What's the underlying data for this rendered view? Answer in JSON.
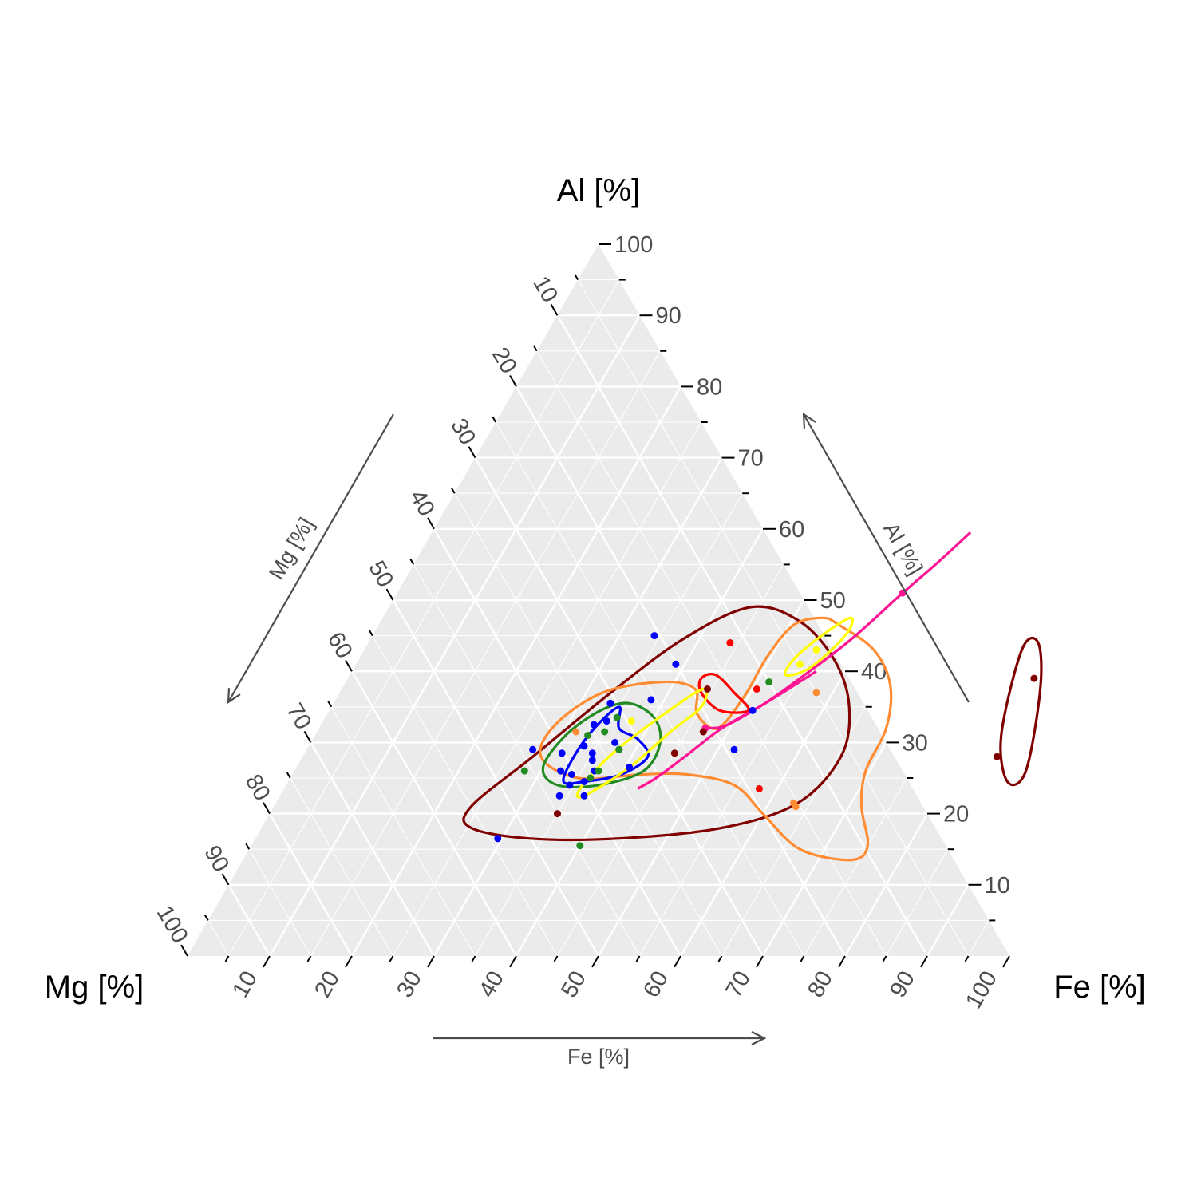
{
  "chart_data": {
    "type": "scatter",
    "subtype": "ternary",
    "corner_labels": {
      "top": "Al [%]",
      "left": "Mg [%]",
      "right": "Fe [%]"
    },
    "axis_arrow_labels": {
      "bottom": "Fe [%]",
      "left": "Mg [%]",
      "right": "Al [%]"
    },
    "tick_labels": {
      "al": [
        "10",
        "20",
        "30",
        "40",
        "50",
        "60",
        "70",
        "80",
        "90",
        "100"
      ],
      "mg": [
        "10",
        "20",
        "30",
        "40",
        "50",
        "60",
        "70",
        "80",
        "90",
        "100"
      ],
      "fe": [
        "10",
        "20",
        "30",
        "40",
        "50",
        "60",
        "70",
        "80",
        "90",
        "100"
      ]
    },
    "grid": true,
    "colors": {
      "panel": "#ebebeb",
      "grid": "#ffffff",
      "axis_text": "#4d4d4d",
      "title_text": "#000000",
      "arrow": "#4d4d4d"
    },
    "series": [
      {
        "color": "#0000ff",
        "points": [
          {
            "fe": 34.3,
            "al": 45.0
          },
          {
            "fe": 38.9,
            "al": 41.0
          },
          {
            "fe": 33.7,
            "al": 35.5
          },
          {
            "fe": 38.4,
            "al": 36.0
          },
          {
            "fe": 33.2,
            "al": 32.5
          },
          {
            "fe": 34.5,
            "al": 33.0
          },
          {
            "fe": 33.5,
            "al": 29.5
          },
          {
            "fe": 31.3,
            "al": 28.5
          },
          {
            "fe": 35.0,
            "al": 28.5
          },
          {
            "fe": 35.5,
            "al": 27.5
          },
          {
            "fe": 37.0,
            "al": 30.0
          },
          {
            "fe": 38.0,
            "al": 29.0
          },
          {
            "fe": 36.5,
            "al": 26.0
          },
          {
            "fe": 34.0,
            "al": 25.5
          },
          {
            "fe": 32.4,
            "al": 26.0
          },
          {
            "fe": 27.5,
            "al": 29.0
          },
          {
            "fe": 34.5,
            "al": 24.0
          },
          {
            "fe": 36.0,
            "al": 24.5
          },
          {
            "fe": 40.5,
            "al": 26.5
          },
          {
            "fe": 34.0,
            "al": 22.5
          },
          {
            "fe": 37.0,
            "al": 22.5
          },
          {
            "fe": 51.5,
            "al": 34.5
          },
          {
            "fe": 52.0,
            "al": 29.0
          },
          {
            "fe": 29.5,
            "al": 16.5
          }
        ]
      },
      {
        "color": "#228b22",
        "points": [
          {
            "fe": 35.5,
            "al": 33.5
          },
          {
            "fe": 35.0,
            "al": 31.5
          },
          {
            "fe": 33.2,
            "al": 31.0
          },
          {
            "fe": 38.0,
            "al": 29.0
          },
          {
            "fe": 37.0,
            "al": 26.0
          },
          {
            "fe": 28.0,
            "al": 26.0
          },
          {
            "fe": 51.5,
            "al": 38.5
          },
          {
            "fe": 36.5,
            "al": 25.0
          },
          {
            "fe": 40.0,
            "al": 15.5
          }
        ]
      },
      {
        "color": "#ff0000",
        "points": [
          {
            "fe": 44.0,
            "al": 44.0
          },
          {
            "fe": 50.5,
            "al": 37.5
          },
          {
            "fe": 57.8,
            "al": 23.5
          }
        ]
      },
      {
        "color": "#ffff00",
        "points": [
          {
            "fe": 37.5,
            "al": 33.0
          },
          {
            "fe": 55.0,
            "al": 43.0
          },
          {
            "fe": 54.0,
            "al": 41.0
          }
        ]
      },
      {
        "color": "#ff8c33",
        "points": [
          {
            "fe": 58.0,
            "al": 37.0
          },
          {
            "fe": 31.5,
            "al": 31.5
          },
          {
            "fe": 63.5,
            "al": 21.0
          },
          {
            "fe": 63.0,
            "al": 21.5
          }
        ]
      },
      {
        "color": "#ff1493",
        "points": [
          {
            "fe": 61.5,
            "al": 51.0
          },
          {
            "fe": 47.0,
            "al": 32.0
          }
        ]
      },
      {
        "color": "#800000",
        "points": [
          {
            "fe": 44.5,
            "al": 37.5
          },
          {
            "fe": 45.0,
            "al": 28.5
          },
          {
            "fe": 47.0,
            "al": 31.5
          },
          {
            "fe": 35.0,
            "al": 20.0
          },
          {
            "fe": 83.5,
            "al": 39.0
          },
          {
            "fe": 84.5,
            "al": 28.0
          }
        ]
      }
    ],
    "density_contours": [
      {
        "color": "#800000",
        "points": [
          {
            "fe": 44.0,
            "al": 49.0
          },
          {
            "fe": 51.0,
            "al": 47.0
          },
          {
            "fe": 58.0,
            "al": 41.5
          },
          {
            "fe": 63.0,
            "al": 35.0
          },
          {
            "fe": 65.5,
            "al": 28.0
          },
          {
            "fe": 63.5,
            "al": 21.5
          },
          {
            "fe": 56.0,
            "al": 18.0
          },
          {
            "fe": 44.0,
            "al": 16.5
          },
          {
            "fe": 33.5,
            "al": 16.5
          },
          {
            "fe": 25.5,
            "al": 18.0
          },
          {
            "fe": 24.0,
            "al": 21.0
          },
          {
            "fe": 28.0,
            "al": 28.0
          },
          {
            "fe": 33.0,
            "al": 37.0
          },
          {
            "fe": 38.0,
            "al": 44.5
          }
        ]
      },
      {
        "color": "#800000",
        "points": [
          {
            "fe": 80.0,
            "al": 43.0
          },
          {
            "fe": 81.5,
            "al": 44.0
          },
          {
            "fe": 85.0,
            "al": 37.5
          },
          {
            "fe": 89.0,
            "al": 26.0
          },
          {
            "fe": 87.5,
            "al": 24.5
          },
          {
            "fe": 83.5,
            "al": 31.0
          }
        ]
      },
      {
        "color": "#ff8c33",
        "points": [
          {
            "fe": 56.0,
            "al": 46.5
          },
          {
            "fe": 62.0,
            "al": 43.0
          },
          {
            "fe": 66.5,
            "al": 38.0
          },
          {
            "fe": 69.0,
            "al": 32.0
          },
          {
            "fe": 69.5,
            "al": 26.0
          },
          {
            "fe": 71.5,
            "al": 21.0
          },
          {
            "fe": 75.0,
            "al": 15.5
          },
          {
            "fe": 74.0,
            "al": 13.5
          },
          {
            "fe": 67.0,
            "al": 15.0
          },
          {
            "fe": 60.0,
            "al": 20.0
          },
          {
            "fe": 54.5,
            "al": 24.0
          },
          {
            "fe": 48.0,
            "al": 25.5
          },
          {
            "fe": 42.5,
            "al": 25.5
          },
          {
            "fe": 35.0,
            "al": 25.0
          },
          {
            "fe": 29.0,
            "al": 28.0
          },
          {
            "fe": 28.5,
            "al": 32.5
          },
          {
            "fe": 32.0,
            "al": 37.0
          },
          {
            "fe": 38.5,
            "al": 38.5
          },
          {
            "fe": 43.0,
            "al": 37.5
          },
          {
            "fe": 45.0,
            "al": 34.0
          },
          {
            "fe": 48.5,
            "al": 32.0
          },
          {
            "fe": 49.5,
            "al": 36.5
          },
          {
            "fe": 49.5,
            "al": 42.0
          },
          {
            "fe": 50.5,
            "al": 46.5
          },
          {
            "fe": 53.5,
            "al": 47.5
          }
        ]
      },
      {
        "color": "#ff0000",
        "points": [
          {
            "fe": 44.5,
            "al": 39.5
          },
          {
            "fe": 48.0,
            "al": 37.0
          },
          {
            "fe": 51.0,
            "al": 34.5
          },
          {
            "fe": 47.5,
            "al": 34.5
          },
          {
            "fe": 44.0,
            "al": 37.0
          },
          {
            "fe": 43.0,
            "al": 39.0
          }
        ]
      },
      {
        "color": "#228b22",
        "points": [
          {
            "fe": 36.0,
            "al": 35.5
          },
          {
            "fe": 40.0,
            "al": 33.5
          },
          {
            "fe": 42.5,
            "al": 30.0
          },
          {
            "fe": 42.5,
            "al": 26.0
          },
          {
            "fe": 38.0,
            "al": 24.0
          },
          {
            "fe": 33.0,
            "al": 24.0
          },
          {
            "fe": 30.0,
            "al": 26.5
          },
          {
            "fe": 30.5,
            "al": 31.0
          },
          {
            "fe": 33.0,
            "al": 34.5
          }
        ]
      },
      {
        "color": "#0000ff",
        "points": [
          {
            "fe": 35.0,
            "al": 35.0
          },
          {
            "fe": 36.5,
            "al": 32.0
          },
          {
            "fe": 39.5,
            "al": 30.5
          },
          {
            "fe": 42.0,
            "al": 28.0
          },
          {
            "fe": 40.0,
            "al": 25.5
          },
          {
            "fe": 36.0,
            "al": 24.5
          },
          {
            "fe": 33.5,
            "al": 24.5
          },
          {
            "fe": 33.0,
            "al": 28.0
          },
          {
            "fe": 33.5,
            "al": 32.0
          }
        ]
      },
      {
        "color": "#ffff00",
        "points": [
          {
            "fe": 44.0,
            "al": 37.5
          },
          {
            "fe": 45.0,
            "al": 35.0
          },
          {
            "fe": 43.0,
            "al": 31.5
          },
          {
            "fe": 40.5,
            "al": 26.5
          },
          {
            "fe": 37.0,
            "al": 22.5
          },
          {
            "fe": 36.0,
            "al": 23.5
          },
          {
            "fe": 37.5,
            "al": 28.5
          },
          {
            "fe": 41.0,
            "al": 34.0
          }
        ]
      },
      {
        "color": "#ffff00",
        "points": [
          {
            "fe": 57.0,
            "al": 47.5
          },
          {
            "fe": 57.5,
            "al": 45.0
          },
          {
            "fe": 55.5,
            "al": 40.5
          },
          {
            "fe": 53.0,
            "al": 39.5
          },
          {
            "fe": 53.0,
            "al": 42.0
          },
          {
            "fe": 55.0,
            "al": 45.5
          }
        ]
      }
    ],
    "open_curves": [
      {
        "color": "#ff1493",
        "points": [
          {
            "fe": 65.5,
            "al": 59.5
          },
          {
            "fe": 63.5,
            "al": 55.0
          },
          {
            "fe": 61.5,
            "al": 51.0
          },
          {
            "fe": 58.5,
            "al": 44.5
          },
          {
            "fe": 55.0,
            "al": 39.0
          },
          {
            "fe": 52.5,
            "al": 35.5
          },
          {
            "fe": 49.0,
            "al": 32.0
          },
          {
            "fe": 46.5,
            "al": 28.0
          },
          {
            "fe": 44.5,
            "al": 25.0
          },
          {
            "fe": 43.0,
            "al": 23.5
          }
        ]
      },
      {
        "color": "#ff1493",
        "points": [
          {
            "fe": 56.5,
            "al": 40.0
          },
          {
            "fe": 53.0,
            "al": 36.0
          },
          {
            "fe": 49.5,
            "al": 32.5
          },
          {
            "fe": 47.5,
            "al": 32.0
          }
        ]
      }
    ]
  }
}
